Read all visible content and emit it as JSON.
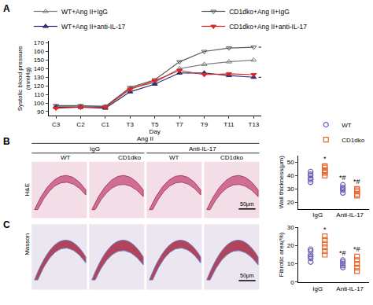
{
  "chart_data": [
    {
      "type": "line",
      "panel_label": "A",
      "categories": [
        "C3",
        "C2",
        "C1",
        "T3",
        "T5",
        "T7",
        "T9",
        "T11",
        "T13"
      ],
      "x_label": "Day",
      "y_label": [
        "Systolic blood pressure",
        "(mmHg)"
      ],
      "ylim": [
        85,
        172
      ],
      "yticks": [
        90,
        100,
        110,
        120,
        130,
        140,
        150,
        160,
        170
      ],
      "legend": "top",
      "series": [
        {
          "name": "WT+Ang II+IgG",
          "color": "#808080",
          "marker": "triangle-up-open",
          "values": [
            96,
            96,
            96,
            117,
            124,
            140,
            145,
            148,
            150
          ]
        },
        {
          "name": "CD1dko+Ang II+IgG",
          "color": "#5a5a5a",
          "marker": "triangle-down-open",
          "values": [
            97,
            97,
            96,
            118,
            127,
            148,
            160,
            164,
            165
          ]
        },
        {
          "name": "WT+Ang II+anti-IL-17",
          "color": "#2e2e6e",
          "marker": "triangle-up",
          "values": [
            95,
            95,
            94,
            113,
            122,
            135,
            135,
            132,
            130
          ]
        },
        {
          "name": "CD1dko+Ang II+anti-IL-17",
          "color": "#e02424",
          "marker": "triangle-down",
          "values": [
            94,
            95,
            95,
            116,
            126,
            138,
            133,
            134,
            133
          ]
        }
      ],
      "annotations": [
        {
          "text": "*",
          "category": "T13"
        }
      ]
    },
    {
      "type": "scatter",
      "panel_label": "B",
      "histology": {
        "group_header": "Ang II",
        "groups": [
          "IgG",
          "Anti-IL-17"
        ],
        "columns": [
          "WT",
          "CD1dko",
          "WT",
          "CD1dko"
        ],
        "row_label": "H&E",
        "scale_bar": "50μm"
      },
      "categories": [
        "IgG",
        "Anti-IL-17"
      ],
      "y_label": "Wall thickness(μm)",
      "ylim": [
        15,
        55
      ],
      "yticks": [
        20,
        30,
        40,
        50
      ],
      "legend": "top right",
      "series": [
        {
          "name": "WT",
          "color": "#6b5fb5",
          "marker": "circle-open",
          "values": [
            [
              35,
              37,
              38,
              40,
              41,
              43
            ],
            [
              27,
              29,
              30,
              31,
              33
            ]
          ]
        },
        {
          "name": "CD1dko",
          "color": "#e8692f",
          "marker": "square-open",
          "values": [
            [
              40,
              42,
              43,
              44,
              46,
              47
            ],
            [
              25,
              26,
              28,
              29,
              30
            ]
          ]
        }
      ],
      "annotations": [
        {
          "category": "IgG",
          "series": "CD1dko",
          "text": "*"
        },
        {
          "category": "Anti-IL-17",
          "series": "WT",
          "text": "*#"
        },
        {
          "category": "Anti-IL-17",
          "series": "CD1dko",
          "text": "*#"
        }
      ]
    },
    {
      "type": "scatter",
      "panel_label": "C",
      "histology": {
        "row_label": "Masson",
        "scale_bar": "50μm"
      },
      "categories": [
        "IgG",
        "Anti-IL-17"
      ],
      "y_label": "Fibrotic area(%)",
      "ylim": [
        0,
        30
      ],
      "yticks": [
        0,
        10,
        20,
        30
      ],
      "series": [
        {
          "name": "WT",
          "color": "#6b5fb5",
          "marker": "circle-open",
          "values": [
            [
              11,
              13,
              14,
              15,
              17,
              18
            ],
            [
              8,
              9,
              10,
              11,
              12
            ]
          ]
        },
        {
          "name": "CD1dko",
          "color": "#e8692f",
          "marker": "square-open",
          "values": [
            [
              15,
              17,
              19,
              21,
              23,
              25
            ],
            [
              6,
              8,
              10,
              12,
              14
            ]
          ]
        }
      ],
      "annotations": [
        {
          "category": "IgG",
          "series": "CD1dko",
          "text": "*"
        },
        {
          "category": "Anti-IL-17",
          "series": "WT",
          "text": "*#"
        },
        {
          "category": "Anti-IL-17",
          "series": "CD1dko",
          "text": "*#"
        }
      ]
    }
  ]
}
